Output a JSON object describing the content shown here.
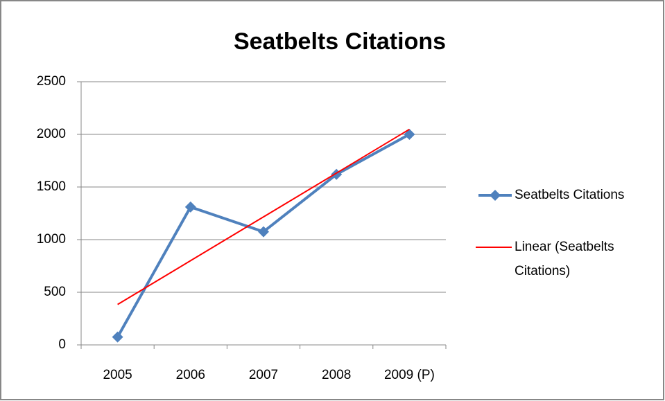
{
  "chart_data": {
    "type": "line",
    "title": "Seatbelts Citations",
    "categories": [
      "2005",
      "2006",
      "2007",
      "2008",
      "2009 (P)"
    ],
    "series": [
      {
        "name": "Seatbelts Citations",
        "color": "#4f81bd",
        "values": [
          75,
          1310,
          1075,
          1620,
          2000
        ]
      },
      {
        "name": "Linear (Seatbelts Citations)",
        "color": "#ff0000",
        "values": [
          384,
          800,
          1216,
          1632,
          2048
        ]
      }
    ],
    "ylim": [
      0,
      2500
    ],
    "yticks": [
      0,
      500,
      1000,
      1500,
      2000,
      2500
    ],
    "grid": true,
    "legend": "right"
  }
}
